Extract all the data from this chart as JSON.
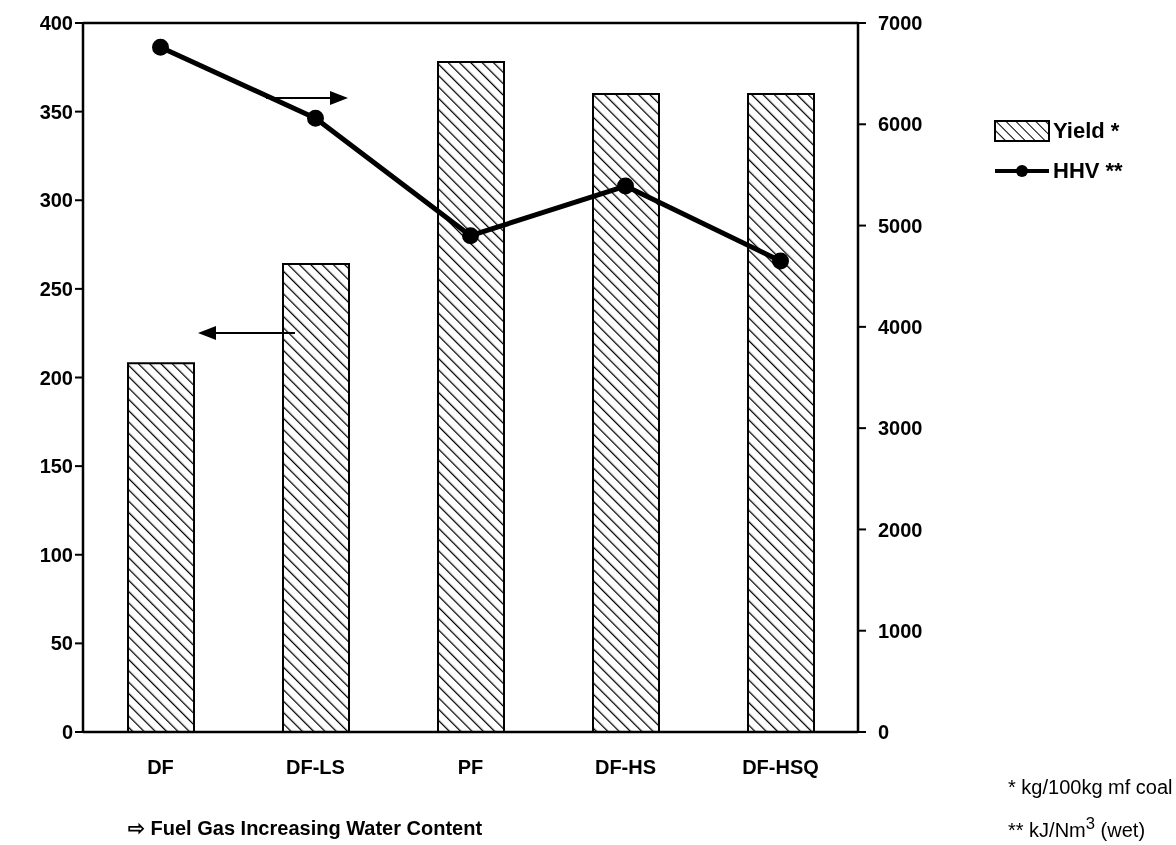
{
  "chart_data": {
    "type": "bar",
    "categories": [
      "DF",
      "DF-LS",
      "PF",
      "DF-HS",
      "DF-HSQ"
    ],
    "series": [
      {
        "name": "Yield *",
        "color": "#000000",
        "values": [
          208,
          264,
          378,
          360,
          360
        ]
      },
      {
        "name": "HHV **",
        "type": "line",
        "axis": "y2",
        "color": "#000000",
        "values": [
          6760,
          6060,
          4900,
          5390,
          4650
        ]
      }
    ],
    "ylim": [
      0,
      400
    ],
    "yticks": [
      0,
      50,
      100,
      150,
      200,
      250,
      300,
      350,
      400
    ],
    "y2lim": [
      0,
      7000
    ],
    "y2ticks": [
      0,
      1000,
      2000,
      3000,
      4000,
      5000,
      6000,
      7000
    ],
    "grid": false,
    "legend": "right",
    "marker": "circle",
    "line_style": "solid",
    "annotations": [
      "⇨ Fuel Gas Increasing Water Content",
      "* kg/100kg mf coal",
      "** kJ/Nm$^{3}$ (wet)"
    ]
  }
}
